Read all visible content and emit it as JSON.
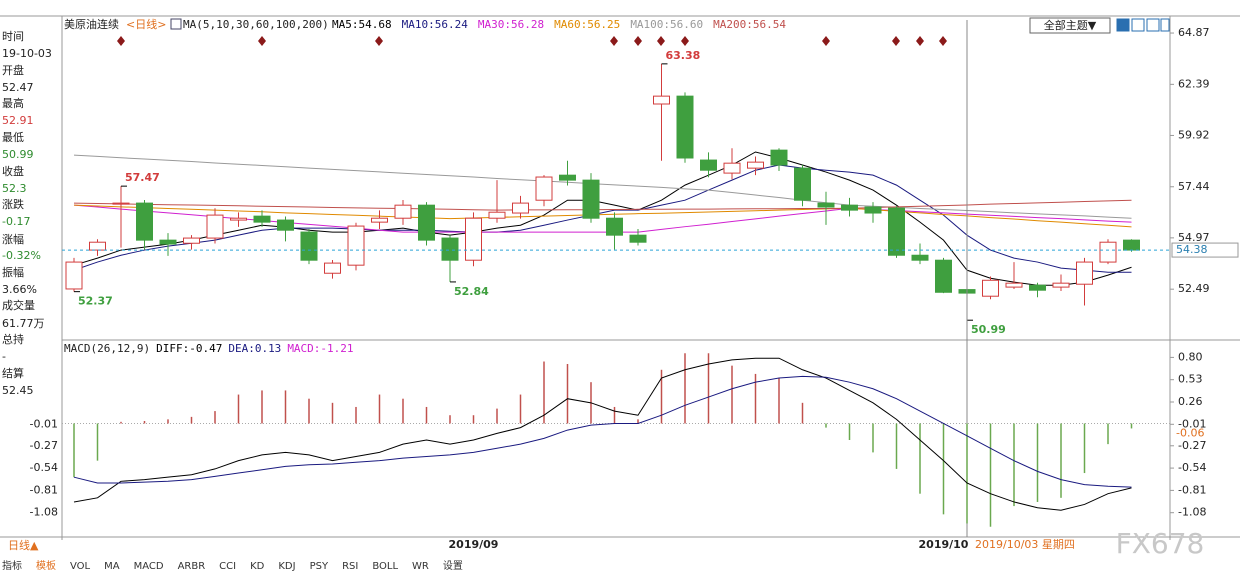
{
  "header": {
    "title": "美原油连续",
    "period": "<日线>",
    "ma_params": "MA(5,10,30,60,100,200)",
    "theme_button": "全部主题▼"
  },
  "info_panel": {
    "time_label": "时间",
    "time": "19-10-03",
    "open_label": "开盘",
    "high_label": "最高",
    "low_label": "最低",
    "close_label": "收盘",
    "change_label": "涨跌",
    "change": -0.17,
    "pct_label": "涨幅",
    "pct": "-0.32%",
    "amplitude_label": "振幅",
    "amplitude": "3.66%",
    "volume_label": "成交量",
    "volume": "61.77万",
    "oi_label": "总持",
    "oi": "-",
    "settle_label": "结算",
    "settle": 52.45
  },
  "chart_data": [
    {
      "type": "candlestick",
      "categories": [
        null,
        null,
        null,
        null,
        null,
        null,
        null,
        null,
        null,
        null,
        null,
        null,
        null,
        null,
        null,
        null,
        null,
        "2019/09",
        null,
        null,
        null,
        null,
        null,
        null,
        null,
        null,
        null,
        null,
        null,
        null,
        null,
        null,
        null,
        null,
        null,
        null,
        null,
        "2019/10",
        null,
        null,
        null,
        null,
        null,
        null,
        null,
        null
      ],
      "candles": {
        "open": [
          52.5,
          54.38,
          56.6,
          56.65,
          54.86,
          54.71,
          54.96,
          55.83,
          56.02,
          55.83,
          55.25,
          53.26,
          53.65,
          55.73,
          55.92,
          56.55,
          54.96,
          53.89,
          55.92,
          56.17,
          56.79,
          58.0,
          57.76,
          55.92,
          55.1,
          61.44,
          61.82,
          58.73,
          58.1,
          58.34,
          59.21,
          58.34,
          56.65,
          56.55,
          56.46,
          56.41,
          54.13,
          53.89,
          52.47,
          52.15,
          52.59,
          52.68,
          52.59,
          52.73,
          53.8,
          54.86
        ],
        "high": [
          54.0,
          54.9,
          57.47,
          56.8,
          55.2,
          55.1,
          56.4,
          56.2,
          56.3,
          56.0,
          55.4,
          53.9,
          55.7,
          56.3,
          56.8,
          56.7,
          55.1,
          56.2,
          57.76,
          57.0,
          58.0,
          58.7,
          58.1,
          56.2,
          55.4,
          63.38,
          62.0,
          59.1,
          59.3,
          58.9,
          59.3,
          58.5,
          57.2,
          56.9,
          56.7,
          56.5,
          54.7,
          54.0,
          52.91,
          53.1,
          53.8,
          52.8,
          53.2,
          54.0,
          54.9,
          54.9
        ],
        "low": [
          52.37,
          54.1,
          54.5,
          54.4,
          54.1,
          54.4,
          54.7,
          55.5,
          55.5,
          54.8,
          53.7,
          53.0,
          53.4,
          55.4,
          55.6,
          54.6,
          52.84,
          53.6,
          55.7,
          55.9,
          56.5,
          57.5,
          55.7,
          54.4,
          54.6,
          58.7,
          58.6,
          57.9,
          57.8,
          58.0,
          58.2,
          56.5,
          55.6,
          56.0,
          55.7,
          54.0,
          53.7,
          52.3,
          50.99,
          52.0,
          52.5,
          52.1,
          52.4,
          51.7,
          53.7,
          54.3
        ],
        "close": [
          53.8,
          54.76,
          56.65,
          54.86,
          54.67,
          54.96,
          56.07,
          55.92,
          55.73,
          55.34,
          53.89,
          53.75,
          55.54,
          55.92,
          56.55,
          54.86,
          53.89,
          55.92,
          56.21,
          56.65,
          57.91,
          57.76,
          55.92,
          55.1,
          54.76,
          61.82,
          58.83,
          58.24,
          58.58,
          58.63,
          58.49,
          56.79,
          56.46,
          56.31,
          56.17,
          54.13,
          53.89,
          52.34,
          52.3,
          52.92,
          52.78,
          52.44,
          52.78,
          53.8,
          54.76,
          54.38
        ]
      },
      "up_color": "#d23c3c",
      "down_color": "#3f9f3f",
      "last_price_color": "#2aa5d8",
      "series": [
        {
          "label": "MA5:54.68",
          "color": "#000000",
          "values": [
            53.65,
            53.99,
            54.38,
            54.52,
            54.67,
            54.86,
            55.1,
            55.34,
            55.58,
            55.49,
            55.34,
            55.25,
            55.25,
            55.34,
            55.44,
            55.25,
            55.1,
            55.25,
            55.44,
            55.58,
            56.07,
            56.79,
            56.79,
            56.55,
            56.31,
            56.79,
            57.52,
            58.0,
            58.49,
            59.12,
            58.83,
            58.49,
            58.15,
            57.76,
            57.28,
            56.55,
            55.73,
            54.86,
            53.41,
            53.02,
            52.83,
            52.68,
            52.68,
            52.83,
            53.17,
            53.55
          ]
        },
        {
          "label": "MA10:56.24",
          "color": "#1a1a80",
          "values": [
            53.41,
            53.8,
            54.13,
            54.38,
            54.57,
            54.71,
            54.86,
            55.1,
            55.34,
            55.44,
            55.44,
            55.44,
            55.39,
            55.34,
            55.34,
            55.34,
            55.29,
            55.25,
            55.25,
            55.34,
            55.58,
            55.83,
            56.07,
            56.31,
            56.31,
            56.55,
            56.79,
            57.28,
            57.76,
            58.24,
            58.49,
            58.34,
            58.24,
            58.15,
            58.0,
            57.52,
            56.79,
            56.07,
            55.1,
            54.38,
            53.99,
            53.8,
            53.51,
            53.41,
            53.31,
            53.31
          ]
        },
        {
          "label": "MA30:56.28",
          "color": "#d020d0",
          "values": [
            56.55,
            56.46,
            56.36,
            56.27,
            56.18,
            56.09,
            55.99,
            55.9,
            55.81,
            55.71,
            55.62,
            55.53,
            55.44,
            55.34,
            55.25,
            55.25,
            55.25,
            55.25,
            55.25,
            55.25,
            55.25,
            55.25,
            55.25,
            55.25,
            55.25,
            55.38,
            55.51,
            55.63,
            55.76,
            55.89,
            56.02,
            56.15,
            56.27,
            56.4,
            56.34,
            56.29,
            56.23,
            56.18,
            56.12,
            56.06,
            56.01,
            55.95,
            55.9,
            55.84,
            55.78,
            55.73
          ]
        },
        {
          "label": "MA60:56.25",
          "color": "#e08a00",
          "values": [
            56.55,
            56.51,
            56.47,
            56.43,
            56.39,
            56.35,
            56.31,
            56.27,
            56.23,
            56.18,
            56.14,
            56.1,
            56.06,
            56.02,
            55.98,
            55.94,
            55.9,
            55.93,
            55.96,
            55.99,
            56.02,
            56.05,
            56.08,
            56.11,
            56.14,
            56.16,
            56.19,
            56.22,
            56.25,
            56.28,
            56.31,
            56.34,
            56.37,
            56.4,
            56.33,
            56.25,
            56.18,
            56.1,
            56.03,
            55.95,
            55.88,
            55.8,
            55.73,
            55.65,
            55.58,
            55.5
          ]
        },
        {
          "label": "MA100:56.60",
          "color": "#999999",
          "values": [
            58.97,
            58.91,
            58.84,
            58.78,
            58.72,
            58.66,
            58.59,
            58.53,
            58.47,
            58.41,
            58.34,
            58.28,
            58.22,
            58.16,
            58.09,
            58.03,
            57.97,
            57.91,
            57.84,
            57.78,
            57.72,
            57.66,
            57.59,
            57.53,
            57.47,
            57.41,
            57.34,
            57.28,
            57.16,
            57.04,
            56.92,
            56.79,
            56.67,
            56.55,
            56.5,
            56.45,
            56.39,
            56.34,
            56.29,
            56.24,
            56.18,
            56.13,
            56.08,
            56.03,
            55.97,
            55.92
          ]
        },
        {
          "label": "MA200:56.54",
          "color": "#c0504d",
          "values": [
            56.65,
            56.63,
            56.61,
            56.59,
            56.57,
            56.56,
            56.54,
            56.52,
            56.5,
            56.48,
            56.46,
            56.44,
            56.42,
            56.4,
            56.39,
            56.37,
            56.35,
            56.33,
            56.31,
            56.32,
            56.32,
            56.33,
            56.33,
            56.34,
            56.35,
            56.35,
            56.36,
            56.36,
            56.37,
            56.38,
            56.38,
            56.39,
            56.39,
            56.4,
            56.43,
            56.47,
            56.5,
            56.53,
            56.56,
            56.6,
            56.63,
            56.66,
            56.69,
            56.73,
            56.76,
            56.79
          ]
        }
      ],
      "ylim": [
        50.13,
        65.5
      ],
      "yticks": [
        64.87,
        62.39,
        59.92,
        57.44,
        54.97,
        52.49
      ],
      "crosshair": {
        "label": "2019/10/03 星期四"
      }
    },
    {
      "type": "macd",
      "title": "MACD(26,12,9)",
      "histogram": {
        "label": "MACD:-1.21",
        "label_color": "#d020d0",
        "up_color": "#c0504d",
        "down_color": "#6aa84f",
        "values": [
          -0.65,
          -0.45,
          0.02,
          0.03,
          0.05,
          0.08,
          0.15,
          0.35,
          0.4,
          0.4,
          0.3,
          0.25,
          0.2,
          0.35,
          0.3,
          0.2,
          0.1,
          0.1,
          0.18,
          0.35,
          0.75,
          0.72,
          0.5,
          0.2,
          0.05,
          0.65,
          0.85,
          0.85,
          0.7,
          0.6,
          0.55,
          0.25,
          -0.05,
          -0.2,
          -0.35,
          -0.55,
          -0.85,
          -1.1,
          -1.21,
          -1.25,
          -1.0,
          -0.95,
          -0.9,
          -0.6,
          -0.25,
          -0.06
        ]
      },
      "series": [
        {
          "label": "DIFF:-0.47",
          "color": "#000000",
          "values": [
            -0.95,
            -0.9,
            -0.7,
            -0.68,
            -0.65,
            -0.62,
            -0.55,
            -0.45,
            -0.38,
            -0.35,
            -0.38,
            -0.45,
            -0.4,
            -0.35,
            -0.25,
            -0.2,
            -0.25,
            -0.2,
            -0.12,
            -0.05,
            0.1,
            0.3,
            0.25,
            0.15,
            0.1,
            0.55,
            0.65,
            0.72,
            0.77,
            0.79,
            0.79,
            0.65,
            0.55,
            0.4,
            0.25,
            0.05,
            -0.2,
            -0.45,
            -0.72,
            -0.85,
            -0.95,
            -1.02,
            -1.05,
            -0.98,
            -0.85,
            -0.78
          ]
        },
        {
          "label": "DEA:0.13",
          "color": "#1a1a80",
          "values": [
            -0.65,
            -0.72,
            -0.72,
            -0.71,
            -0.7,
            -0.68,
            -0.64,
            -0.6,
            -0.56,
            -0.52,
            -0.5,
            -0.49,
            -0.47,
            -0.45,
            -0.42,
            -0.4,
            -0.38,
            -0.35,
            -0.3,
            -0.25,
            -0.18,
            -0.08,
            -0.02,
            0.0,
            0.0,
            0.1,
            0.22,
            0.32,
            0.42,
            0.5,
            0.55,
            0.57,
            0.56,
            0.5,
            0.42,
            0.3,
            0.15,
            0.0,
            -0.15,
            -0.3,
            -0.45,
            -0.58,
            -0.68,
            -0.74,
            -0.76,
            -0.77
          ]
        }
      ],
      "ylim": [
        -1.35,
        0.95
      ],
      "yticks": [
        {
          "value": 0.8,
          "label": "0.80"
        },
        0.53,
        0.26,
        -0.01,
        -0.27,
        -0.54,
        -0.81,
        -1.08
      ]
    }
  ],
  "footer": {
    "period_toggle": "日线▲",
    "tabs": [
      "指标",
      "模板",
      "VOL",
      "MA",
      "MACD",
      "ARBR",
      "CCI",
      "KD",
      "KDJ",
      "PSY",
      "RSI",
      "BOLL",
      "WR",
      "设置"
    ]
  },
  "watermark": "FX678"
}
